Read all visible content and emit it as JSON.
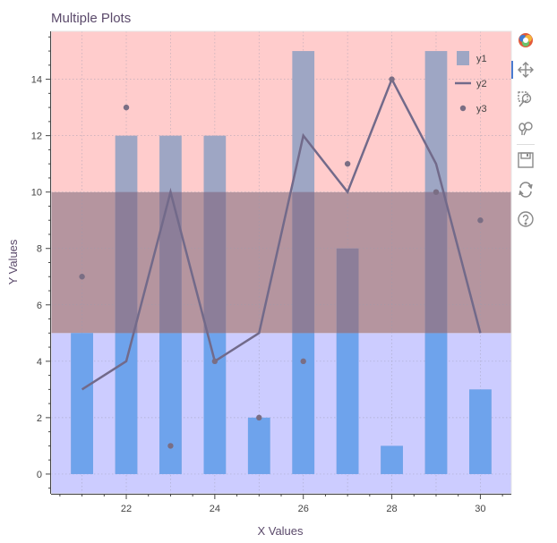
{
  "chart_data": {
    "type": "bar",
    "title": "Multiple Plots",
    "xlabel": "X Values",
    "ylabel": "Y Values",
    "xlim": [
      20.3,
      30.7
    ],
    "ylim": [
      -0.7,
      15.7
    ],
    "xticks": [
      22,
      24,
      26,
      28,
      30
    ],
    "yticks": [
      0,
      2,
      4,
      6,
      8,
      10,
      12,
      14
    ],
    "grid": true,
    "legend_position": "top-right",
    "bands": [
      {
        "from": -0.7,
        "to": 5,
        "color": "#ccccff"
      },
      {
        "from": 5,
        "to": 10,
        "color": "#b5959f"
      },
      {
        "from": 10,
        "to": 15.7,
        "color": "#ffcccc"
      }
    ],
    "x": [
      21,
      22,
      23,
      24,
      25,
      26,
      27,
      28,
      29,
      30
    ],
    "series": [
      {
        "name": "y1",
        "type": "bar",
        "values": [
          5,
          12,
          12,
          12,
          2,
          15,
          8,
          1,
          15,
          3
        ],
        "color": "#9ea6c4"
      },
      {
        "name": "y2",
        "type": "line",
        "values": [
          3,
          4,
          10,
          4,
          5,
          12,
          10,
          14,
          11,
          5
        ],
        "color": "#726a8a"
      },
      {
        "name": "y3",
        "type": "scatter",
        "values": [
          7,
          13,
          1,
          4,
          2,
          4,
          11,
          14,
          10,
          9
        ],
        "color": "#7a6e84"
      }
    ]
  },
  "toolbar": {
    "tools": [
      {
        "id": "logo",
        "icon": "bokeh-logo-icon"
      },
      {
        "id": "pan",
        "icon": "pan-move-icon"
      },
      {
        "id": "box-zoom",
        "icon": "box-zoom-icon"
      },
      {
        "id": "wheel-zoom",
        "icon": "wheel-zoom-icon"
      },
      {
        "id": "save",
        "icon": "save-icon"
      },
      {
        "id": "reset",
        "icon": "reset-icon"
      },
      {
        "id": "help",
        "icon": "help-icon"
      }
    ]
  }
}
